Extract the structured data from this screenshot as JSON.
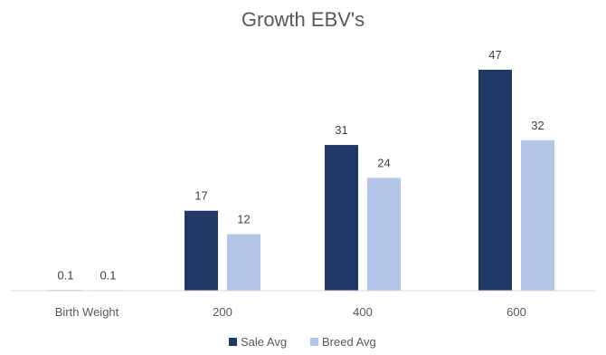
{
  "chart_data": {
    "type": "bar",
    "title": "Growth EBV's",
    "categories": [
      "Birth Weight",
      "200",
      "400",
      "600"
    ],
    "series": [
      {
        "name": "Sale Avg",
        "values": [
          0.1,
          17,
          31,
          47
        ],
        "color": "#1f3864"
      },
      {
        "name": "Breed Avg",
        "values": [
          0.1,
          12,
          24,
          32
        ],
        "color": "#b4c6e7"
      }
    ],
    "ylim": [
      0,
      47
    ],
    "grid": false,
    "data_labels": true,
    "legend_position": "bottom",
    "axis_color": "#d9d9d9"
  }
}
